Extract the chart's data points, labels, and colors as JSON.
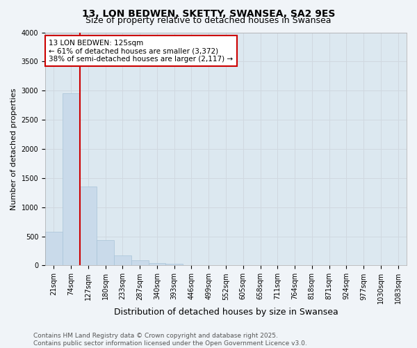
{
  "title": "13, LON BEDWEN, SKETTY, SWANSEA, SA2 9ES",
  "subtitle": "Size of property relative to detached houses in Swansea",
  "xlabel": "Distribution of detached houses by size in Swansea",
  "ylabel": "Number of detached properties",
  "categories": [
    "21sqm",
    "74sqm",
    "127sqm",
    "180sqm",
    "233sqm",
    "287sqm",
    "340sqm",
    "393sqm",
    "446sqm",
    "499sqm",
    "552sqm",
    "605sqm",
    "658sqm",
    "711sqm",
    "764sqm",
    "818sqm",
    "871sqm",
    "924sqm",
    "977sqm",
    "1030sqm",
    "1083sqm"
  ],
  "values": [
    580,
    2960,
    1360,
    430,
    175,
    90,
    45,
    30,
    0,
    0,
    0,
    0,
    0,
    0,
    0,
    0,
    0,
    0,
    0,
    0,
    0
  ],
  "bar_color": "#c9daea",
  "bar_edge_color": "#a8c4d8",
  "grid_color": "#d0d8e0",
  "background_color": "#dce8f0",
  "fig_background": "#f0f4f8",
  "annotation_box_color": "#cc0000",
  "annotation_text": "13 LON BEDWEN: 125sqm\n← 61% of detached houses are smaller (3,372)\n38% of semi-detached houses are larger (2,117) →",
  "vline_x": 1.5,
  "vline_color": "#cc0000",
  "ylim": [
    0,
    4000
  ],
  "yticks": [
    0,
    500,
    1000,
    1500,
    2000,
    2500,
    3000,
    3500,
    4000
  ],
  "footer": "Contains HM Land Registry data © Crown copyright and database right 2025.\nContains public sector information licensed under the Open Government Licence v3.0.",
  "title_fontsize": 10,
  "subtitle_fontsize": 9,
  "xlabel_fontsize": 9,
  "ylabel_fontsize": 8,
  "tick_fontsize": 7,
  "annotation_fontsize": 7.5,
  "footer_fontsize": 6.5
}
